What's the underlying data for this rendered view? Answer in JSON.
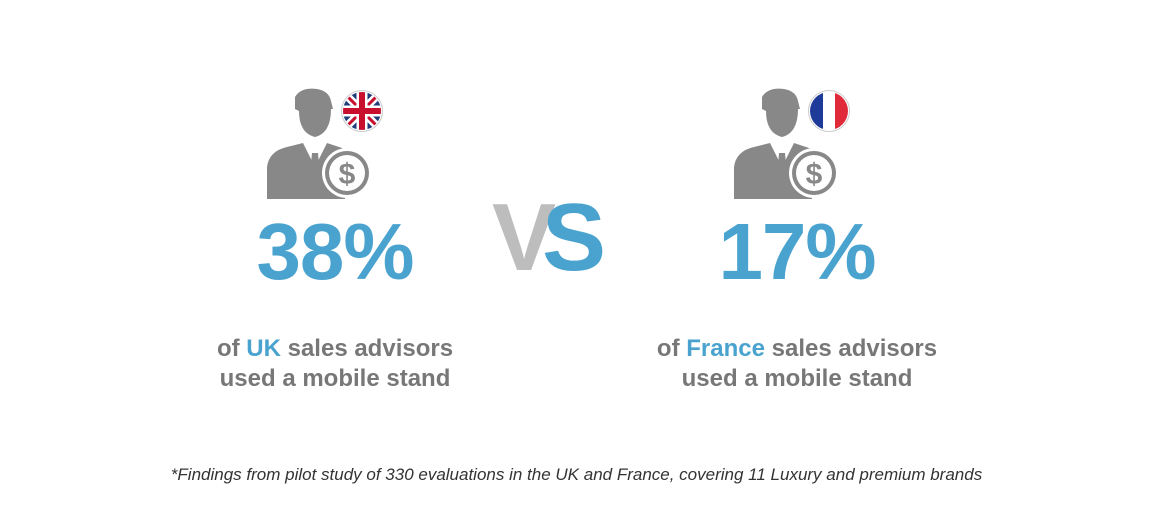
{
  "colors": {
    "accent": "#4aa3cf",
    "body_text": "#777777",
    "icon_gray": "#888888",
    "vs_gray": "#bdbdbd",
    "footnote_text": "#333333"
  },
  "left": {
    "percent": "38%",
    "line1_pre": "of ",
    "country": "UK",
    "line1_post": " sales advisors",
    "line2": "used a mobile stand",
    "person_icon": "person-with-dollar-icon",
    "flag_icon": "uk-flag-icon"
  },
  "right": {
    "percent": "17%",
    "line1_pre": "of ",
    "country": "France",
    "line1_post": " sales advisors",
    "line2": "used a mobile stand",
    "person_icon": "person-with-dollar-icon",
    "flag_icon": "france-flag-icon"
  },
  "vs": {
    "v": "V",
    "s": "S"
  },
  "footnote": "*Findings from pilot study of 330 evaluations in the UK and France, covering 11 Luxury and premium brands"
}
